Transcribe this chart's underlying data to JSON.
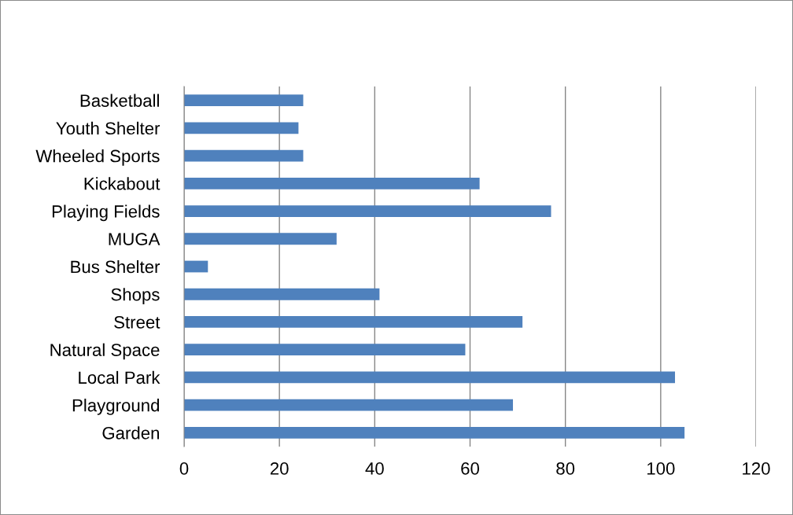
{
  "chart_data": {
    "type": "bar",
    "orientation": "horizontal",
    "categories": [
      "Basketball",
      "Youth Shelter",
      "Wheeled Sports",
      "Kickabout",
      "Playing Fields",
      "MUGA",
      "Bus Shelter",
      "Shops",
      "Street",
      "Natural Space",
      "Local Park",
      "Playground",
      "Garden"
    ],
    "values": [
      25,
      24,
      25,
      62,
      77,
      32,
      5,
      41,
      71,
      59,
      103,
      69,
      105
    ],
    "color": "#4f81bd",
    "xlim": [
      0,
      120
    ],
    "xticks": [
      0,
      20,
      40,
      60,
      80,
      100,
      120
    ],
    "grid": "x"
  }
}
